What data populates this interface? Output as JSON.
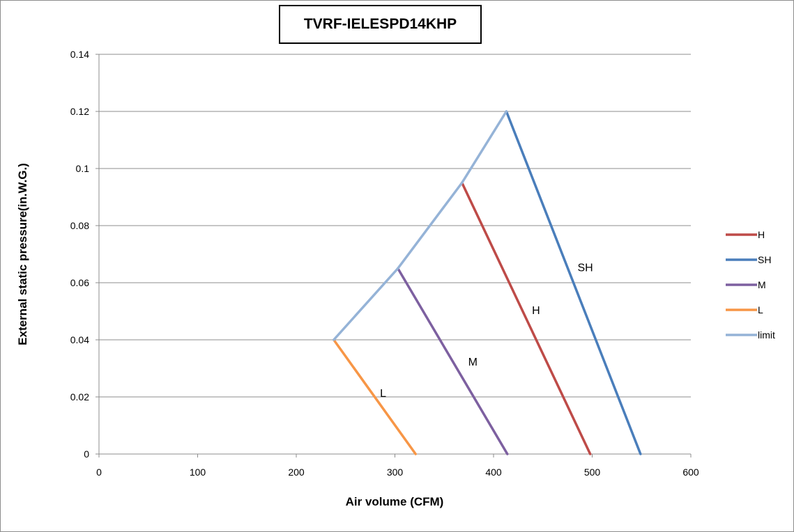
{
  "chart_data": {
    "type": "line",
    "title": "TVRF-IELESPD14KHP",
    "xlabel": "Air volume (CFM)",
    "ylabel": "External static pressure(in.W.G.)",
    "xlim": [
      0,
      600
    ],
    "ylim": [
      0,
      0.14
    ],
    "xticks": [
      0,
      100,
      200,
      300,
      400,
      500,
      600
    ],
    "yticks": [
      0,
      0.02,
      0.04,
      0.06,
      0.08,
      0.1,
      0.12,
      0.14
    ],
    "xtick_labels": [
      "0",
      "100",
      "200",
      "300",
      "400",
      "500",
      "600"
    ],
    "ytick_labels": [
      "0",
      "0.02",
      "0.04",
      "0.06",
      "0.08",
      "0.1",
      "0.12",
      "0.14"
    ],
    "grid": "horizontal",
    "legend_position": "right",
    "series": [
      {
        "name": "H",
        "color": "#BE4B48",
        "points": [
          [
            368,
            0.095
          ],
          [
            498,
            0
          ]
        ],
        "label": {
          "text": "H",
          "x": 443,
          "y": 0.049
        }
      },
      {
        "name": "SH",
        "color": "#4A7EBB",
        "points": [
          [
            413,
            0.12
          ],
          [
            549,
            0
          ]
        ],
        "label": {
          "text": "SH",
          "x": 493,
          "y": 0.064
        }
      },
      {
        "name": "M",
        "color": "#7D60A0",
        "points": [
          [
            303,
            0.065
          ],
          [
            414,
            0
          ]
        ],
        "label": {
          "text": "M",
          "x": 379,
          "y": 0.031
        }
      },
      {
        "name": "L",
        "color": "#F79646",
        "points": [
          [
            238,
            0.04
          ],
          [
            321,
            0
          ]
        ],
        "label": {
          "text": "L",
          "x": 288,
          "y": 0.02
        }
      },
      {
        "name": "limit",
        "color": "#95B3D7",
        "points": [
          [
            238,
            0.04
          ],
          [
            303,
            0.065
          ],
          [
            368,
            0.095
          ],
          [
            413,
            0.12
          ]
        ],
        "label": null
      }
    ]
  }
}
